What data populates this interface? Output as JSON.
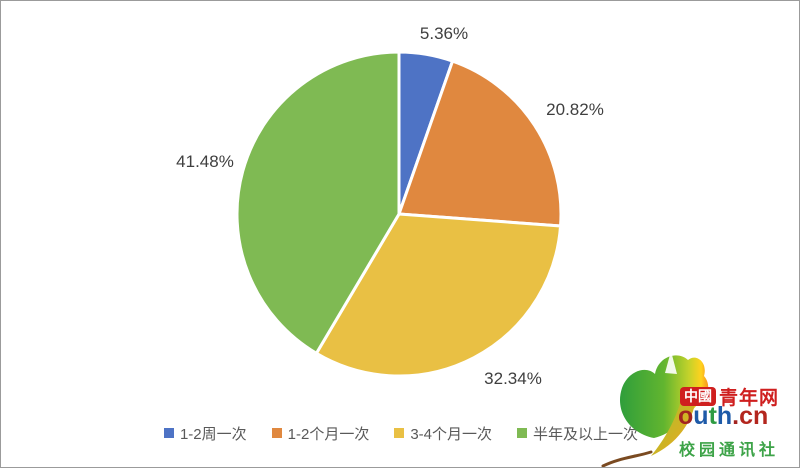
{
  "chart_data": {
    "type": "pie",
    "direction": "clockwise",
    "start_angle_deg": 0,
    "legend_position": "bottom",
    "slice_border_color": "#ffffff",
    "slices": [
      {
        "label": "1-2周一次",
        "value": 5.36,
        "display": "5.36%",
        "color": "#4e73c5"
      },
      {
        "label": "1-2个月一次",
        "value": 20.82,
        "display": "20.82%",
        "color": "#e0883f"
      },
      {
        "label": "3-4个月一次",
        "value": 32.34,
        "display": "32.34%",
        "color": "#e9c044"
      },
      {
        "label": "半年及以上一次",
        "value": 41.48,
        "display": "41.48%",
        "color": "#7fba53"
      }
    ]
  },
  "watermark": {
    "badge_text": "中國",
    "site_name": "青年网",
    "domain_letters": [
      {
        "ch": "o",
        "color": "#a32420"
      },
      {
        "ch": "u",
        "color": "#1e5aa8"
      },
      {
        "ch": "t",
        "color": "#2e9b43"
      },
      {
        "ch": "h",
        "color": "#1e5aa8"
      },
      {
        "ch": ".",
        "color": "#a32420"
      },
      {
        "ch": "c",
        "color": "#b3261e"
      },
      {
        "ch": "n",
        "color": "#b3261e"
      }
    ],
    "tagline": "校园通讯社",
    "colors": {
      "red": "#cf1f1f",
      "green": "#3da348"
    }
  }
}
